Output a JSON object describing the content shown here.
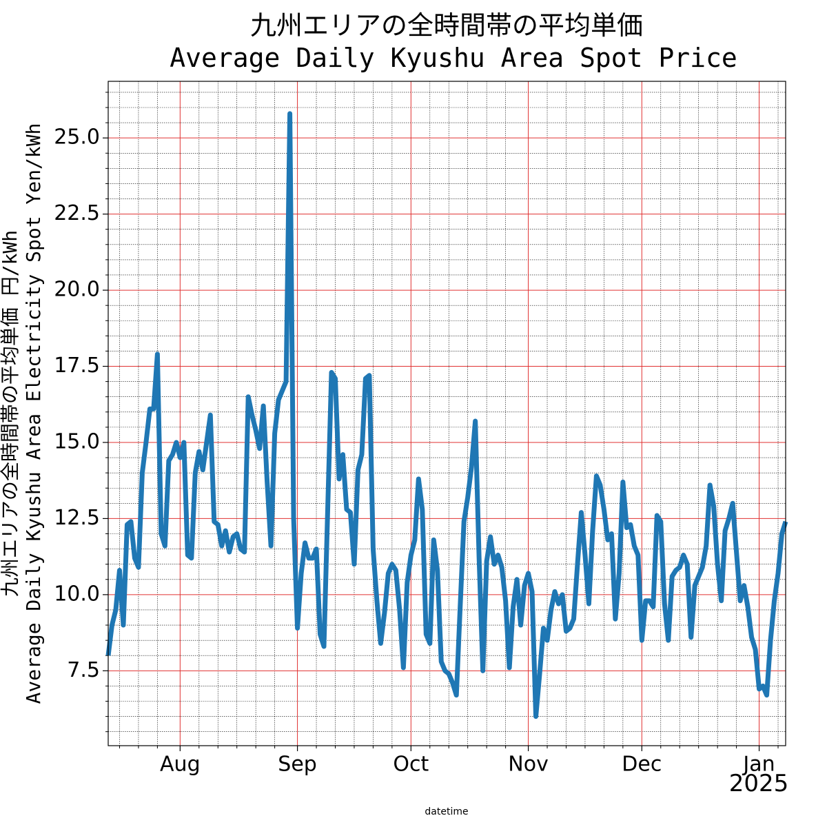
{
  "chart_data": {
    "type": "line",
    "title": [
      "九州エリアの全時間帯の平均単価",
      "Average Daily Kyushu Area Spot Price"
    ],
    "y_label": [
      "九州エリアの全時間帯の平均単価 円/kWh",
      "Average Daily Kyushu Area Electricity Spot Yen/kWh"
    ],
    "x_label": "datetime",
    "x_offset_label": "2025",
    "color": "#1f77b4",
    "values": [
      8.0,
      9.0,
      9.5,
      10.8,
      9.0,
      12.3,
      12.4,
      11.2,
      10.9,
      14.0,
      15.0,
      16.1,
      16.1,
      17.9,
      12.0,
      11.6,
      14.4,
      14.6,
      15.0,
      14.5,
      15.0,
      11.3,
      11.2,
      14.0,
      14.7,
      14.1,
      15.0,
      15.9,
      12.4,
      12.3,
      11.6,
      12.1,
      11.4,
      11.9,
      12.0,
      11.5,
      11.4,
      16.5,
      15.9,
      15.4,
      14.8,
      16.2,
      13.7,
      11.6,
      15.3,
      16.4,
      16.7,
      17.0,
      25.8,
      12.5,
      8.9,
      10.7,
      11.7,
      11.2,
      11.2,
      11.5,
      8.7,
      8.3,
      12.8,
      17.3,
      17.1,
      13.8,
      14.6,
      12.8,
      12.7,
      11.0,
      14.1,
      14.6,
      17.1,
      17.2,
      11.5,
      9.8,
      8.4,
      9.4,
      10.7,
      11.0,
      10.8,
      9.5,
      7.6,
      10.4,
      11.3,
      11.8,
      13.8,
      12.8,
      8.7,
      8.4,
      11.8,
      10.8,
      7.8,
      7.5,
      7.4,
      7.1,
      6.7,
      9.6,
      12.4,
      13.2,
      14.2,
      15.7,
      11.2,
      7.5,
      11.1,
      11.9,
      11.0,
      11.3,
      10.9,
      9.8,
      7.6,
      9.6,
      10.5,
      9.0,
      10.3,
      10.7,
      10.1,
      6.0,
      7.4,
      8.9,
      8.5,
      9.5,
      10.1,
      9.7,
      10.0,
      8.8,
      8.9,
      9.2,
      11.0,
      12.7,
      11.3,
      9.7,
      12.1,
      13.9,
      13.6,
      12.8,
      11.8,
      12.0,
      9.2,
      10.7,
      13.7,
      12.2,
      12.3,
      11.6,
      11.3,
      8.5,
      9.8,
      9.8,
      9.6,
      12.6,
      12.4,
      9.7,
      8.5,
      10.6,
      10.8,
      10.9,
      11.3,
      11.0,
      8.6,
      10.3,
      10.6,
      10.9,
      11.6,
      13.6,
      12.9,
      11.0,
      9.8,
      12.1,
      12.5,
      13.0,
      11.4,
      9.8,
      10.3,
      9.6,
      8.6,
      8.2,
      6.9,
      7.0,
      6.7,
      8.5,
      9.8,
      10.7,
      12.0,
      12.4
    ],
    "xlim": [
      0,
      179
    ],
    "xticks": [
      {
        "value": 19,
        "label": "Aug"
      },
      {
        "value": 50,
        "label": "Sep"
      },
      {
        "value": 80,
        "label": "Oct"
      },
      {
        "value": 111,
        "label": "Nov"
      },
      {
        "value": 141,
        "label": "Dec"
      },
      {
        "value": 172,
        "label": "Jan"
      }
    ],
    "xminorticks": [
      3,
      8,
      13,
      24,
      29,
      34,
      39,
      44,
      55,
      60,
      65,
      70,
      75,
      85,
      90,
      95,
      100,
      105,
      116,
      121,
      126,
      131,
      136,
      146,
      151,
      156,
      161,
      166,
      177
    ],
    "ylim": [
      5.04,
      26.86
    ],
    "yticks": [
      7.5,
      {
        "value": 10,
        "label": "10.0"
      },
      12.5,
      {
        "value": 15,
        "label": "15.0"
      },
      17.5,
      {
        "value": 20,
        "label": "20.0"
      },
      22.5,
      {
        "value": 25,
        "label": "25.0"
      }
    ],
    "yminorticks": [
      5.5,
      6,
      6.5,
      7,
      8,
      8.5,
      9,
      9.5,
      10.5,
      11,
      11.5,
      12,
      13,
      13.5,
      14,
      14.5,
      15.5,
      16,
      16.5,
      17,
      18,
      18.5,
      19,
      19.5,
      20.5,
      21,
      21.5,
      22,
      23,
      23.5,
      24,
      24.5,
      25.5,
      26,
      26.5
    ],
    "grid": true
  }
}
